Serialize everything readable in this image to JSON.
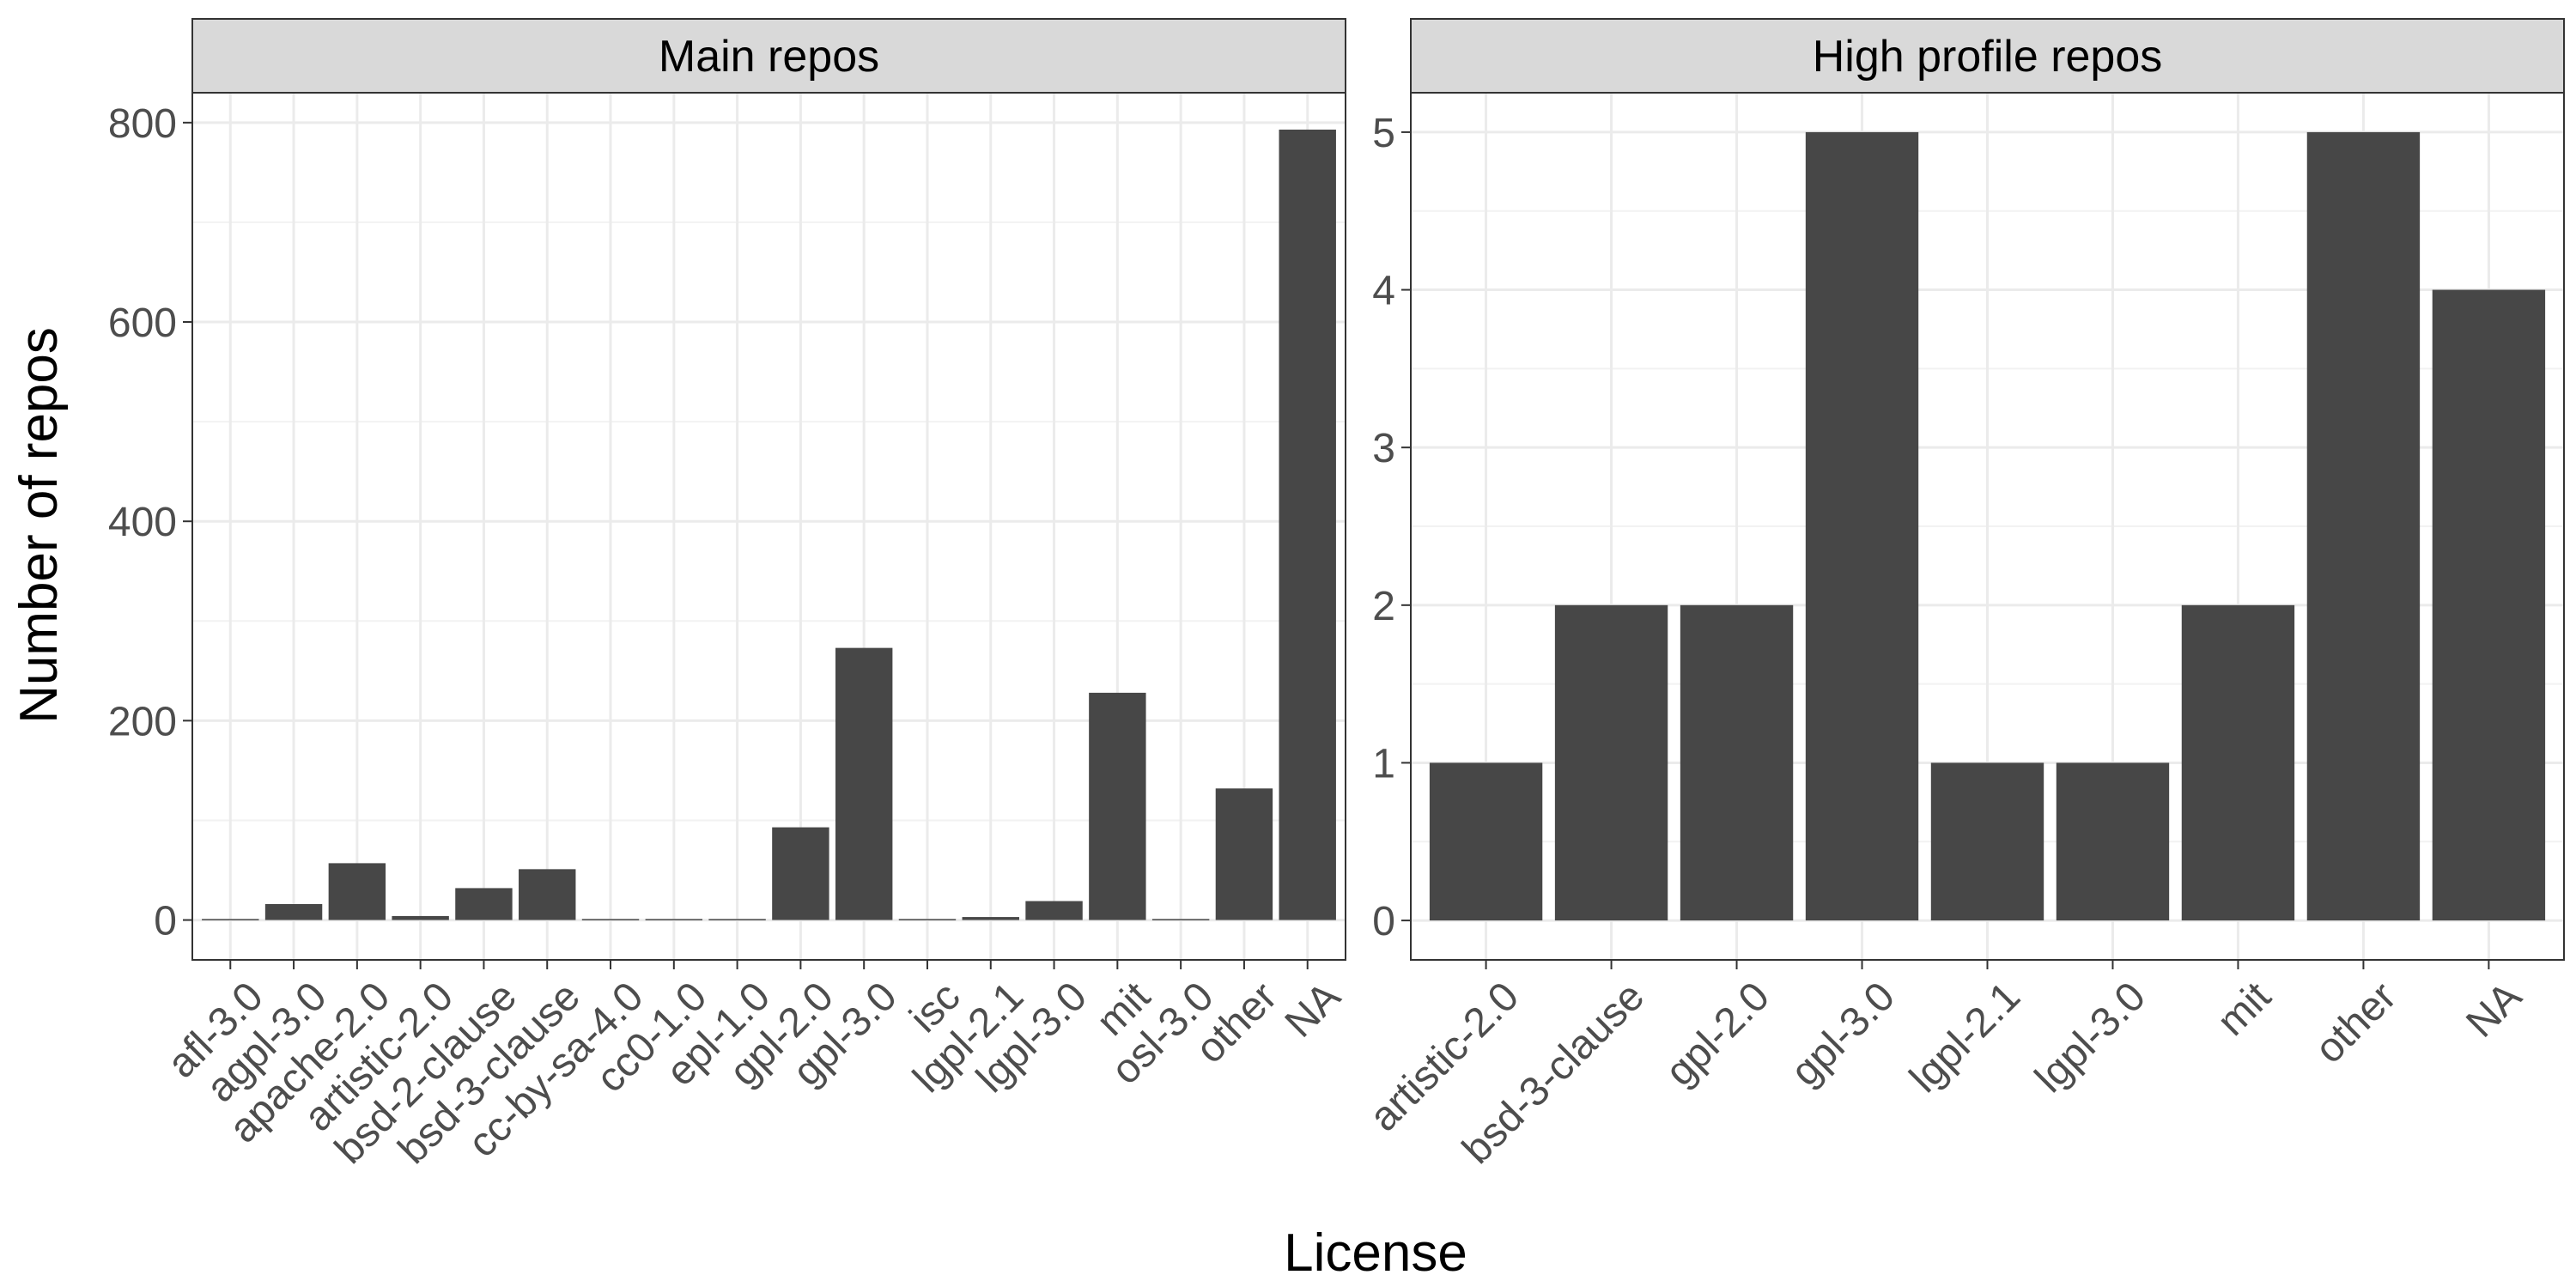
{
  "chart_data": {
    "type": "bar",
    "xlabel": "License",
    "ylabel": "Number of repos",
    "bar_color": "#474747",
    "strip_color": "#d9d9d9",
    "grid": true,
    "panels": [
      {
        "title": "Main repos",
        "ylim": [
          -40,
          830
        ],
        "yticks": [
          0,
          200,
          400,
          600,
          800
        ],
        "categories": [
          "afl-3.0",
          "agpl-3.0",
          "apache-2.0",
          "artistic-2.0",
          "bsd-2-clause",
          "bsd-3-clause",
          "cc-by-sa-4.0",
          "cc0-1.0",
          "epl-1.0",
          "gpl-2.0",
          "gpl-3.0",
          "isc",
          "lgpl-2.1",
          "lgpl-3.0",
          "mit",
          "osl-3.0",
          "other",
          "NA"
        ],
        "values": [
          1,
          16,
          57,
          4,
          32,
          51,
          1,
          1,
          1,
          93,
          273,
          1,
          3,
          19,
          228,
          1,
          132,
          793
        ]
      },
      {
        "title": "High profile repos",
        "ylim": [
          -0.25,
          5.25
        ],
        "yticks": [
          0,
          1,
          2,
          3,
          4,
          5
        ],
        "categories": [
          "artistic-2.0",
          "bsd-3-clause",
          "gpl-2.0",
          "gpl-3.0",
          "lgpl-2.1",
          "lgpl-3.0",
          "mit",
          "other",
          "NA"
        ],
        "values": [
          1,
          2,
          2,
          5,
          1,
          1,
          2,
          5,
          4
        ]
      }
    ]
  }
}
